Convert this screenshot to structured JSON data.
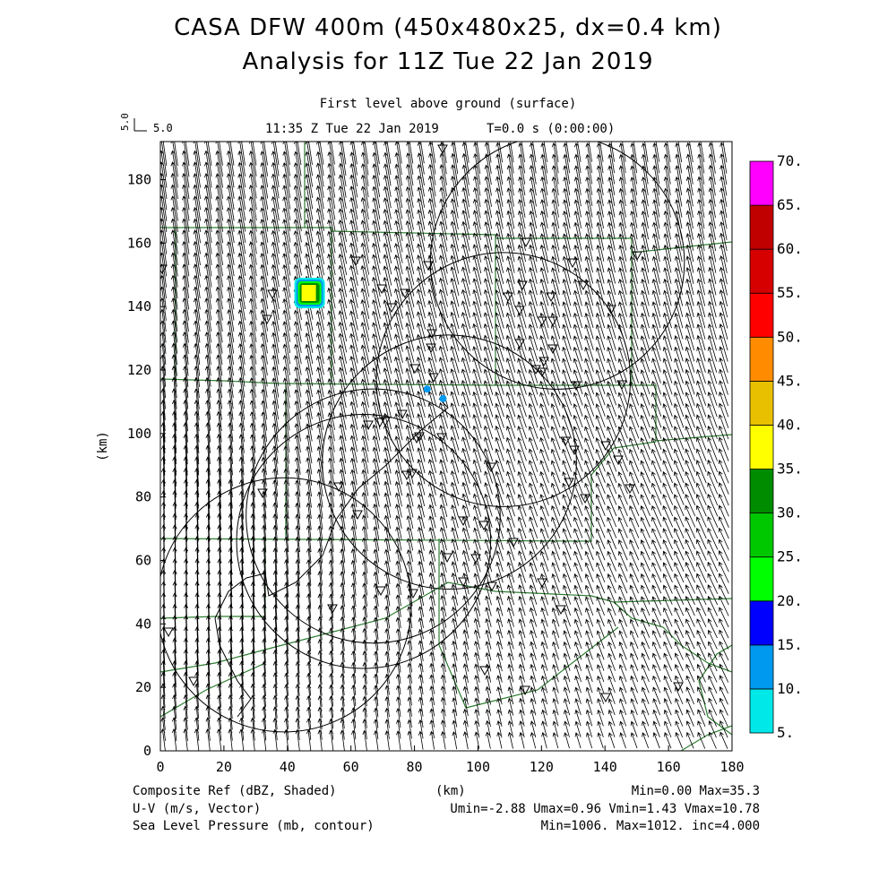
{
  "header": {
    "title_line1": "CASA DFW 400m (450x480x25, dx=0.4 km)",
    "title_line2": "Analysis for 11Z Tue 22 Jan 2019",
    "level": "First level above ground (surface)",
    "valid_time": "11:35 Z Tue 22 Jan 2019",
    "elapsed": "T=0.0 s (0:00:00)",
    "ref_vector_value": "5.0",
    "ref_vector_label": "5.0"
  },
  "axes": {
    "xlabel": "(km)",
    "ylabel": "(km)",
    "x_ticks": [
      "0",
      "20",
      "40",
      "60",
      "80",
      "100",
      "120",
      "140",
      "160",
      "180"
    ],
    "y_ticks": [
      "0",
      "20",
      "40",
      "60",
      "80",
      "100",
      "120",
      "140",
      "160",
      "180"
    ],
    "x_range": [
      0,
      180
    ],
    "y_range": [
      0,
      192
    ]
  },
  "colorbar": {
    "labels": [
      "5.",
      "10.",
      "15.",
      "20.",
      "25.",
      "30.",
      "35.",
      "40.",
      "45.",
      "50.",
      "55.",
      "60.",
      "65.",
      "70."
    ],
    "colors": [
      "#00e8e8",
      "#0099f0",
      "#0000ff",
      "#00ff00",
      "#00c800",
      "#008c00",
      "#ffff00",
      "#e8c000",
      "#ff8c00",
      "#ff0000",
      "#d60000",
      "#c00000",
      "#ff00ff"
    ]
  },
  "footer": {
    "field1": "Composite Ref (dBZ, Shaded)",
    "field2": "U-V (m/s, Vector)",
    "field3": "Sea Level Pressure (mb, contour)",
    "xunit": "(km)",
    "stats1": "Min=0.00 Max=35.3",
    "stats2": "Umin=-2.88 Umax=0.96 Vmin=1.43 Vmax=10.78",
    "stats3": "Min=1006. Max=1012. inc=4.000"
  },
  "map_data": {
    "radar_circles_center_km": [
      [
        108,
        117
      ],
      [
        67,
        74
      ],
      [
        125,
        154
      ],
      [
        39,
        46
      ],
      [
        91,
        91
      ],
      [
        64,
        66
      ]
    ],
    "radar_circle_radius_km": 40,
    "reflectivity_cells": [
      {
        "x_km": 47,
        "y_km": 144,
        "dbz": 35.3
      },
      {
        "x_km": 84,
        "y_km": 114,
        "dbz": 12
      },
      {
        "x_km": 89,
        "y_km": 111,
        "dbz": 11
      }
    ],
    "colors": {
      "county_lines": "#2e7d32",
      "contours": "#000000",
      "vectors": "#000000"
    }
  }
}
